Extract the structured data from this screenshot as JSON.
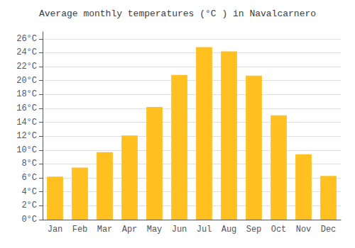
{
  "chart_data": {
    "type": "bar",
    "title": "Average monthly temperatures (°C ) in Navalcarnero",
    "categories": [
      "Jan",
      "Feb",
      "Mar",
      "Apr",
      "May",
      "Jun",
      "Jul",
      "Aug",
      "Sep",
      "Oct",
      "Nov",
      "Dec"
    ],
    "values": [
      6.2,
      7.5,
      9.7,
      12.1,
      16.2,
      20.8,
      24.8,
      24.2,
      20.7,
      15.0,
      9.4,
      6.3
    ],
    "color": "#FFC020",
    "ylim": [
      0,
      27
    ],
    "yticks": [
      {
        "value": 0,
        "label": "0°C"
      },
      {
        "value": 2,
        "label": "2°C"
      },
      {
        "value": 4,
        "label": "4°C"
      },
      {
        "value": 6,
        "label": "6°C"
      },
      {
        "value": 8,
        "label": "8°C"
      },
      {
        "value": 10,
        "label": "10°C"
      },
      {
        "value": 12,
        "label": "12°C"
      },
      {
        "value": 14,
        "label": "14°C"
      },
      {
        "value": 16,
        "label": "16°C"
      },
      {
        "value": 18,
        "label": "18°C"
      },
      {
        "value": 20,
        "label": "20°C"
      },
      {
        "value": 22,
        "label": "22°C"
      },
      {
        "value": 24,
        "label": "24°C"
      },
      {
        "value": 26,
        "label": "26°C"
      }
    ],
    "grid": true
  }
}
